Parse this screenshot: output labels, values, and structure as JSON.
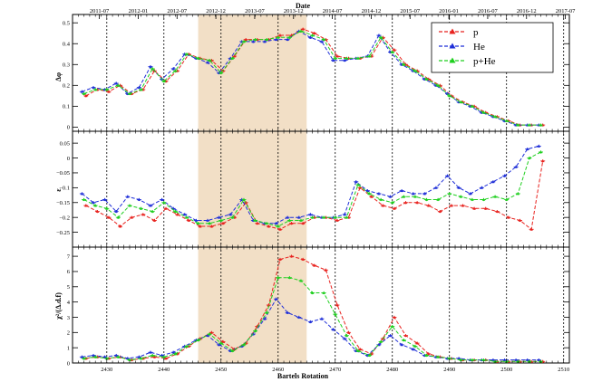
{
  "chart_data": {
    "type": "line",
    "x_label": "Bartels Rotation",
    "top_axis_title": "Date",
    "x_range": [
      2424,
      2511
    ],
    "x_ticks": [
      2430,
      2440,
      2450,
      2460,
      2470,
      2480,
      2490,
      2500,
      2510
    ],
    "date_ticks": [
      {
        "br": 2428.7,
        "label": "2011-07"
      },
      {
        "br": 2435.5,
        "label": "2012-01"
      },
      {
        "br": 2442.3,
        "label": "2012-07"
      },
      {
        "br": 2449.1,
        "label": "2012-12"
      },
      {
        "br": 2455.9,
        "label": "2013-07"
      },
      {
        "br": 2462.7,
        "label": "2013-12"
      },
      {
        "br": 2469.5,
        "label": "2014-07"
      },
      {
        "br": 2476.3,
        "label": "2014-12"
      },
      {
        "br": 2483.1,
        "label": "2015-07"
      },
      {
        "br": 2489.9,
        "label": "2016-01"
      },
      {
        "br": 2496.7,
        "label": "2016-07"
      },
      {
        "br": 2503.5,
        "label": "2016-12"
      },
      {
        "br": 2510.3,
        "label": "2017-07"
      }
    ],
    "vertical_dashed_lines": [
      2430,
      2440,
      2450,
      2460,
      2470,
      2480,
      2490,
      2500,
      2510
    ],
    "shaded_region": [
      2446,
      2465
    ],
    "legend": [
      {
        "name": "p",
        "color": "#e8221e"
      },
      {
        "name": "He",
        "color": "#1f2fd8"
      },
      {
        "name": "p+He",
        "color": "#1fcf1f"
      }
    ],
    "panels": [
      {
        "ylabel": "Δφ",
        "ylim": [
          -0.02,
          0.54
        ],
        "yticks": [
          0,
          0.1,
          0.2,
          0.3,
          0.4,
          0.5
        ],
        "ytick_labels": [
          "0",
          "0.1",
          "0.2",
          "0.3",
          "0.4",
          "0.5"
        ],
        "series": [
          {
            "name": "p",
            "x": [
              2426,
              2428,
              2430,
              2432,
              2434,
              2436,
              2438,
              2440,
              2442,
              2444,
              2446,
              2448,
              2450,
              2452,
              2454,
              2456,
              2458,
              2460,
              2462,
              2464,
              2466,
              2468,
              2470,
              2472,
              2474,
              2476,
              2478,
              2480,
              2482,
              2484,
              2486,
              2488,
              2490,
              2492,
              2494,
              2496,
              2498,
              2500,
              2502,
              2504,
              2506
            ],
            "y": [
              0.15,
              0.18,
              0.17,
              0.2,
              0.16,
              0.18,
              0.27,
              0.22,
              0.27,
              0.35,
              0.33,
              0.32,
              0.27,
              0.34,
              0.42,
              0.42,
              0.42,
              0.44,
              0.44,
              0.47,
              0.45,
              0.42,
              0.34,
              0.33,
              0.33,
              0.34,
              0.43,
              0.37,
              0.3,
              0.27,
              0.23,
              0.2,
              0.15,
              0.12,
              0.1,
              0.07,
              0.05,
              0.03,
              0.01,
              0.01,
              0.01
            ]
          },
          {
            "name": "He",
            "x": [
              2426,
              2428,
              2430,
              2432,
              2434,
              2436,
              2438,
              2440,
              2442,
              2444,
              2446,
              2448,
              2450,
              2452,
              2454,
              2456,
              2458,
              2460,
              2462,
              2464,
              2466,
              2468,
              2470,
              2472,
              2474,
              2476,
              2478,
              2480,
              2482,
              2484,
              2486,
              2488,
              2490,
              2492,
              2494,
              2496,
              2498,
              2500,
              2502,
              2504,
              2506
            ],
            "y": [
              0.17,
              0.19,
              0.18,
              0.21,
              0.16,
              0.19,
              0.29,
              0.23,
              0.28,
              0.35,
              0.33,
              0.31,
              0.26,
              0.33,
              0.41,
              0.41,
              0.41,
              0.42,
              0.42,
              0.46,
              0.43,
              0.41,
              0.32,
              0.32,
              0.33,
              0.34,
              0.44,
              0.36,
              0.3,
              0.27,
              0.23,
              0.2,
              0.16,
              0.12,
              0.1,
              0.07,
              0.05,
              0.03,
              0.01,
              0.01,
              0.01
            ]
          },
          {
            "name": "p+He",
            "x": [
              2426,
              2428,
              2430,
              2432,
              2434,
              2436,
              2438,
              2440,
              2442,
              2444,
              2446,
              2448,
              2450,
              2452,
              2454,
              2456,
              2458,
              2460,
              2462,
              2464,
              2466,
              2468,
              2470,
              2472,
              2474,
              2476,
              2478,
              2480,
              2482,
              2484,
              2486,
              2488,
              2490,
              2492,
              2494,
              2496,
              2498,
              2500,
              2502,
              2504,
              2506
            ],
            "y": [
              0.16,
              0.18,
              0.18,
              0.2,
              0.16,
              0.18,
              0.28,
              0.22,
              0.27,
              0.35,
              0.33,
              0.32,
              0.26,
              0.33,
              0.41,
              0.42,
              0.42,
              0.43,
              0.43,
              0.46,
              0.44,
              0.42,
              0.33,
              0.33,
              0.33,
              0.34,
              0.43,
              0.36,
              0.3,
              0.27,
              0.23,
              0.2,
              0.15,
              0.12,
              0.1,
              0.07,
              0.05,
              0.03,
              0.01,
              0.01,
              0.01
            ]
          }
        ]
      },
      {
        "ylabel": "ε",
        "ylim": [
          -0.3,
          0.09
        ],
        "yticks": [
          0.05,
          0,
          -0.05,
          -0.1,
          -0.15,
          -0.2,
          -0.25
        ],
        "ytick_labels": [
          "0.05",
          "0",
          "−0.05",
          "−0.1",
          "−0.15",
          "−0.2",
          "−0.25"
        ],
        "series": [
          {
            "name": "p",
            "x": [
              2426,
              2428,
              2430,
              2432,
              2434,
              2436,
              2438,
              2440,
              2442,
              2444,
              2446,
              2448,
              2450,
              2452,
              2454,
              2456,
              2458,
              2460,
              2462,
              2464,
              2466,
              2468,
              2470,
              2472,
              2474,
              2476,
              2478,
              2480,
              2482,
              2484,
              2486,
              2488,
              2490,
              2492,
              2494,
              2496,
              2498,
              2500,
              2502,
              2504,
              2506
            ],
            "y": [
              -0.16,
              -0.18,
              -0.2,
              -0.23,
              -0.2,
              -0.19,
              -0.21,
              -0.17,
              -0.19,
              -0.21,
              -0.23,
              -0.23,
              -0.22,
              -0.2,
              -0.15,
              -0.22,
              -0.23,
              -0.24,
              -0.22,
              -0.22,
              -0.2,
              -0.2,
              -0.21,
              -0.2,
              -0.1,
              -0.13,
              -0.16,
              -0.17,
              -0.15,
              -0.15,
              -0.16,
              -0.18,
              -0.16,
              -0.16,
              -0.17,
              -0.17,
              -0.18,
              -0.2,
              -0.21,
              -0.24,
              -0.01
            ]
          },
          {
            "name": "He",
            "x": [
              2426,
              2428,
              2430,
              2432,
              2434,
              2436,
              2438,
              2440,
              2442,
              2444,
              2446,
              2448,
              2450,
              2452,
              2454,
              2456,
              2458,
              2460,
              2462,
              2464,
              2466,
              2468,
              2470,
              2472,
              2474,
              2476,
              2478,
              2480,
              2482,
              2484,
              2486,
              2488,
              2490,
              2492,
              2494,
              2496,
              2498,
              2500,
              2502,
              2504,
              2506
            ],
            "y": [
              -0.12,
              -0.15,
              -0.14,
              -0.18,
              -0.13,
              -0.14,
              -0.16,
              -0.14,
              -0.17,
              -0.19,
              -0.21,
              -0.21,
              -0.2,
              -0.19,
              -0.14,
              -0.21,
              -0.22,
              -0.22,
              -0.2,
              -0.2,
              -0.19,
              -0.2,
              -0.2,
              -0.19,
              -0.08,
              -0.11,
              -0.12,
              -0.13,
              -0.11,
              -0.12,
              -0.12,
              -0.1,
              -0.06,
              -0.1,
              -0.12,
              -0.1,
              -0.08,
              -0.06,
              -0.03,
              0.03,
              0.04
            ]
          },
          {
            "name": "p+He",
            "x": [
              2426,
              2428,
              2430,
              2432,
              2434,
              2436,
              2438,
              2440,
              2442,
              2444,
              2446,
              2448,
              2450,
              2452,
              2454,
              2456,
              2458,
              2460,
              2462,
              2464,
              2466,
              2468,
              2470,
              2472,
              2474,
              2476,
              2478,
              2480,
              2482,
              2484,
              2486,
              2488,
              2490,
              2492,
              2494,
              2496,
              2498,
              2500,
              2502,
              2504,
              2506
            ],
            "y": [
              -0.14,
              -0.16,
              -0.17,
              -0.2,
              -0.16,
              -0.17,
              -0.18,
              -0.15,
              -0.18,
              -0.2,
              -0.22,
              -0.22,
              -0.21,
              -0.2,
              -0.14,
              -0.21,
              -0.22,
              -0.23,
              -0.21,
              -0.21,
              -0.2,
              -0.2,
              -0.2,
              -0.2,
              -0.09,
              -0.12,
              -0.14,
              -0.15,
              -0.13,
              -0.13,
              -0.14,
              -0.14,
              -0.12,
              -0.13,
              -0.14,
              -0.14,
              -0.13,
              -0.14,
              -0.12,
              0.0,
              0.02
            ]
          }
        ]
      },
      {
        "ylabel": "χ²/(Δ.d.f)",
        "ylim": [
          0,
          7.6
        ],
        "yticks": [
          0,
          1,
          2,
          3,
          4,
          5,
          6,
          7
        ],
        "ytick_labels": [
          "0",
          "1",
          "2",
          "3",
          "4",
          "5",
          "6",
          "7"
        ],
        "series": [
          {
            "name": "p",
            "x": [
              2426,
              2428,
              2430,
              2432,
              2434,
              2436,
              2438,
              2440,
              2442,
              2444,
              2446,
              2448,
              2450,
              2452,
              2454,
              2456,
              2458,
              2460,
              2462,
              2464,
              2466,
              2468,
              2470,
              2472,
              2474,
              2476,
              2478,
              2480,
              2482,
              2484,
              2486,
              2488,
              2490,
              2492,
              2494,
              2496,
              2498,
              2500,
              2502,
              2504,
              2506
            ],
            "y": [
              0.3,
              0.4,
              0.3,
              0.4,
              0.2,
              0.3,
              0.4,
              0.3,
              0.6,
              1.1,
              1.6,
              2.0,
              1.4,
              0.9,
              1.3,
              2.4,
              3.8,
              6.8,
              7.0,
              6.8,
              6.4,
              6.1,
              3.8,
              2.0,
              0.9,
              0.6,
              1.6,
              3.0,
              1.8,
              1.3,
              0.6,
              0.4,
              0.3,
              0.2,
              0.2,
              0.2,
              0.1,
              0.1,
              0.1,
              0.1,
              0.1
            ]
          },
          {
            "name": "He",
            "x": [
              2426,
              2428,
              2430,
              2432,
              2434,
              2436,
              2438,
              2440,
              2442,
              2444,
              2446,
              2448,
              2450,
              2452,
              2454,
              2456,
              2458,
              2460,
              2462,
              2464,
              2466,
              2468,
              2470,
              2472,
              2474,
              2476,
              2478,
              2480,
              2482,
              2484,
              2486,
              2488,
              2490,
              2492,
              2494,
              2496,
              2498,
              2500,
              2502,
              2504,
              2506
            ],
            "y": [
              0.4,
              0.5,
              0.4,
              0.5,
              0.3,
              0.4,
              0.7,
              0.5,
              0.7,
              1.1,
              1.5,
              1.8,
              1.2,
              0.8,
              1.1,
              1.9,
              2.9,
              4.2,
              3.3,
              3.0,
              2.7,
              2.9,
              2.2,
              1.6,
              0.8,
              0.5,
              1.2,
              1.8,
              1.2,
              0.9,
              0.5,
              0.4,
              0.3,
              0.3,
              0.2,
              0.2,
              0.2,
              0.2,
              0.2,
              0.2,
              0.2
            ]
          },
          {
            "name": "p+He",
            "x": [
              2426,
              2428,
              2430,
              2432,
              2434,
              2436,
              2438,
              2440,
              2442,
              2444,
              2446,
              2448,
              2450,
              2452,
              2454,
              2456,
              2458,
              2460,
              2462,
              2464,
              2466,
              2468,
              2470,
              2472,
              2474,
              2476,
              2478,
              2480,
              2482,
              2484,
              2486,
              2488,
              2490,
              2492,
              2494,
              2496,
              2498,
              2500,
              2502,
              2504,
              2506
            ],
            "y": [
              0.3,
              0.4,
              0.3,
              0.4,
              0.2,
              0.3,
              0.5,
              0.4,
              0.6,
              1.1,
              1.5,
              1.9,
              1.3,
              0.8,
              1.2,
              2.1,
              3.3,
              5.6,
              5.6,
              5.4,
              4.6,
              4.6,
              3.2,
              1.8,
              0.8,
              0.5,
              1.4,
              2.4,
              1.5,
              1.1,
              0.5,
              0.4,
              0.3,
              0.2,
              0.2,
              0.2,
              0.1,
              0.1,
              0.1,
              0.1,
              0.1
            ]
          }
        ]
      }
    ]
  }
}
